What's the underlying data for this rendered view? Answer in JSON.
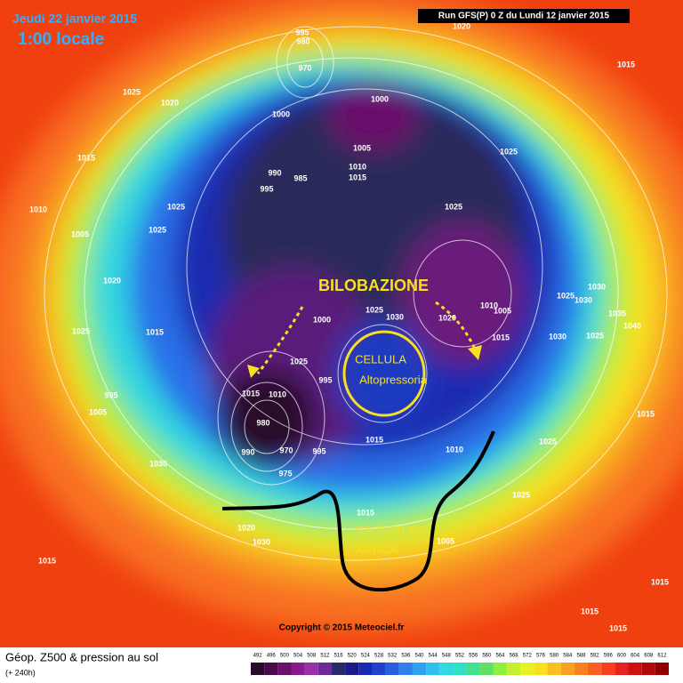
{
  "header": {
    "date": "Jeudi 22 janvier 2015",
    "time": "1:00 locale",
    "run": "Run GFS(P) 0 Z du Lundi 12 janvier 2015"
  },
  "annotations": [
    "BILOBAZIONE",
    "CELLULA",
    "Altopressoria",
    "SACCATURA",
    "ARTICA"
  ],
  "copyright": "Copyright © 2015 Meteociel.fr",
  "footer": {
    "title": "Géop. Z500 & pression au sol",
    "lead": "(+ 240h)"
  },
  "pressure_labels": [
    995,
    980,
    970,
    1000,
    1020,
    1025,
    1020,
    1015,
    1000,
    1015,
    1005,
    1025,
    990,
    985,
    1010,
    1015,
    995,
    1010,
    1025,
    1025,
    1005,
    1025,
    1020,
    1030,
    1025,
    1030,
    1000,
    1025,
    1030,
    1020,
    1010,
    1005,
    1035,
    1040,
    1025,
    1015,
    1015,
    1030,
    1025,
    1025,
    995,
    1015,
    1010,
    980,
    990,
    970,
    995,
    975,
    1015,
    1010,
    1025,
    1025,
    1015,
    1030,
    1015,
    1005,
    1020,
    1030,
    1015,
    1015,
    1015,
    1015,
    995,
    1005
  ],
  "colorbar": {
    "values": [
      492,
      496,
      500,
      504,
      508,
      512,
      516,
      520,
      524,
      528,
      532,
      536,
      540,
      544,
      548,
      552,
      556,
      560,
      564,
      568,
      572,
      576,
      580,
      584,
      588,
      592,
      596,
      600,
      604,
      608,
      612
    ],
    "colors": [
      "#2a0a2a",
      "#4a0a4a",
      "#6a106a",
      "#8a1a8a",
      "#9a30a8",
      "#6a2a9a",
      "#2a2a6a",
      "#1a1a8a",
      "#1a2ab0",
      "#2040d0",
      "#2a60e0",
      "#3080f0",
      "#30a0f0",
      "#30c0f0",
      "#30d8e0",
      "#30e0c0",
      "#40e090",
      "#60e060",
      "#90f040",
      "#c0f030",
      "#e8f020",
      "#f8e020",
      "#f8c020",
      "#f8a020",
      "#f88020",
      "#f86020",
      "#f84020",
      "#e82020",
      "#d01010",
      "#b00808",
      "#900000"
    ]
  }
}
